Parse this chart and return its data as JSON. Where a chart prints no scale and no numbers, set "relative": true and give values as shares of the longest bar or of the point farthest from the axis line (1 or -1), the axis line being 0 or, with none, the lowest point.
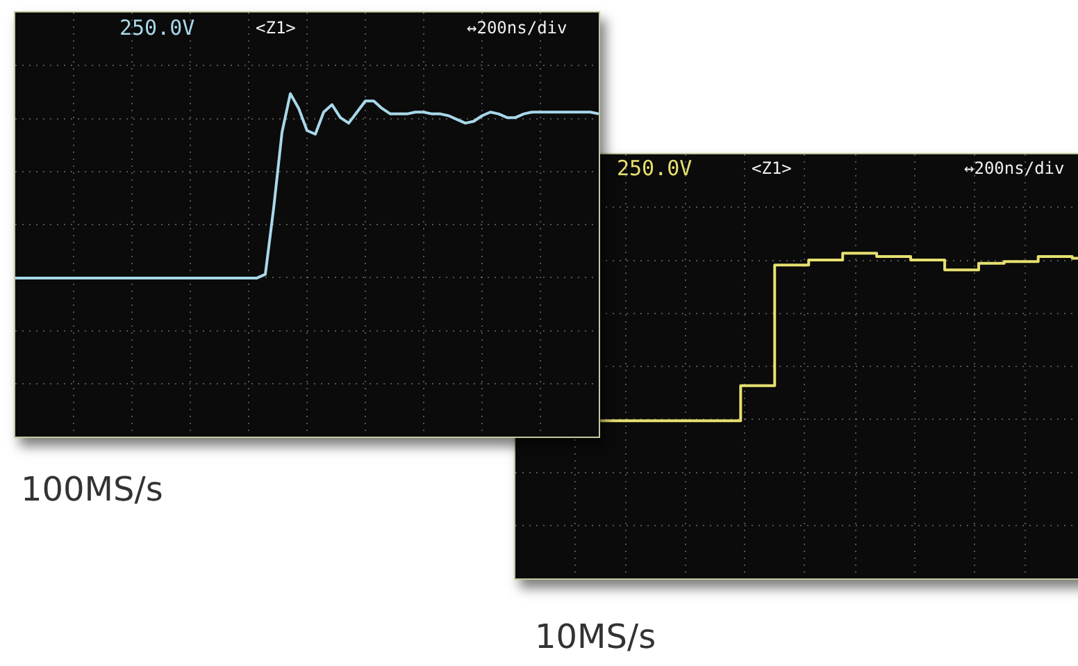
{
  "chart_data": [
    {
      "type": "line",
      "relative": true,
      "grid": true,
      "legend": false,
      "tick_labels": false,
      "categories": [
        null,
        null,
        null,
        null,
        null,
        null,
        null,
        null,
        null,
        null,
        null,
        null,
        null,
        null,
        null,
        null,
        null,
        null,
        null,
        null,
        null,
        null,
        null,
        null,
        null,
        null,
        null,
        null,
        null,
        null,
        null,
        null,
        null,
        null,
        null,
        null,
        null,
        null,
        null,
        null,
        null,
        null,
        null,
        null,
        null,
        null,
        null,
        null,
        null,
        null,
        null,
        null,
        null,
        null,
        null,
        null,
        null,
        null,
        null,
        null,
        null,
        null,
        null,
        null,
        null,
        null,
        null,
        null,
        null,
        null,
        null
      ],
      "series": [
        {
          "color": "#a8d8ea",
          "values": [
            0,
            0,
            0,
            0,
            0,
            0,
            0,
            0,
            0,
            0,
            0,
            0,
            0,
            0,
            0,
            0,
            0,
            0,
            0,
            0,
            0,
            0,
            0,
            0,
            0,
            0,
            0,
            0,
            0,
            0,
            0.02,
            0.38,
            0.79,
            1,
            0.92,
            0.8,
            0.78,
            0.9,
            0.94,
            0.87,
            0.84,
            0.9,
            0.96,
            0.96,
            0.92,
            0.89,
            0.89,
            0.89,
            0.9,
            0.9,
            0.89,
            0.89,
            0.88,
            0.86,
            0.84,
            0.85,
            0.88,
            0.9,
            0.89,
            0.87,
            0.87,
            0.89,
            0.9,
            0.9,
            0.9,
            0.9,
            0.9,
            0.9,
            0.9,
            0.9,
            0.89
          ]
        }
      ],
      "annotations": [
        "250.0V",
        "<Z1>",
        "↔200ns/div",
        "100MS/s"
      ]
    },
    {
      "type": "step",
      "relative": true,
      "grid": true,
      "legend": false,
      "tick_labels": false,
      "categories": [
        null,
        null,
        null,
        null,
        null,
        null,
        null,
        null,
        null,
        null,
        null,
        null,
        null,
        null,
        null,
        null,
        null,
        null,
        null,
        null,
        null,
        null,
        null,
        null,
        null,
        null,
        null,
        null,
        null,
        null,
        null,
        null,
        null,
        null,
        null,
        null,
        null,
        null,
        null,
        null,
        null,
        null,
        null,
        null,
        null,
        null,
        null,
        null,
        null,
        null,
        null,
        null,
        null,
        null,
        null,
        null,
        null,
        null,
        null,
        null,
        null,
        null,
        null,
        null,
        null,
        null,
        null,
        null
      ],
      "series": [
        {
          "color": "#e6e070",
          "values": [
            null,
            null,
            null,
            null,
            null,
            null,
            null,
            null,
            null,
            null,
            0,
            0,
            0,
            0,
            0,
            0,
            0,
            0,
            0,
            0,
            0,
            0,
            0,
            0,
            0,
            0,
            0,
            0.21,
            0.21,
            0.21,
            0.21,
            0.93,
            0.93,
            0.93,
            0.93,
            0.96,
            0.96,
            0.96,
            0.96,
            1,
            1,
            1,
            1,
            0.98,
            0.98,
            0.98,
            0.98,
            0.96,
            0.96,
            0.96,
            0.96,
            0.9,
            0.9,
            0.9,
            0.9,
            0.94,
            0.94,
            0.94,
            0.95,
            0.95,
            0.95,
            0.95,
            0.98,
            0.98,
            0.98,
            0.98,
            0.97,
            0.97
          ]
        }
      ],
      "annotations": [
        "250.0V",
        "<Z1>",
        "↔200ns/div",
        "10MS/s"
      ]
    }
  ]
}
